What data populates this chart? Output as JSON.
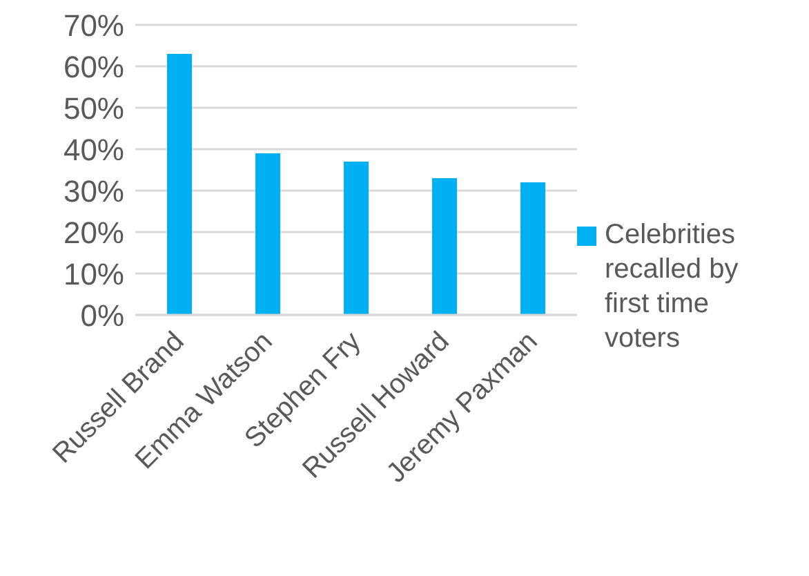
{
  "chart_data": {
    "type": "bar",
    "categories": [
      "Russell Brand",
      "Emma Watson",
      "Stephen Fry",
      "Russell Howard",
      "Jeremy Paxman"
    ],
    "series": [
      {
        "name": "Celebrities recalled by first time voters",
        "color": "#00b0f0",
        "values": [
          63,
          39,
          37,
          33,
          32
        ]
      }
    ],
    "ylim": [
      0,
      70
    ],
    "yticks": [
      {
        "value": 0,
        "label": "0%"
      },
      {
        "value": 10,
        "label": "10%"
      },
      {
        "value": 20,
        "label": "20%"
      },
      {
        "value": 30,
        "label": "30%"
      },
      {
        "value": 40,
        "label": "40%"
      },
      {
        "value": 50,
        "label": "50%"
      },
      {
        "value": 60,
        "label": "60%"
      },
      {
        "value": 70,
        "label": "70%"
      }
    ],
    "grid": "y",
    "legend": "right"
  }
}
